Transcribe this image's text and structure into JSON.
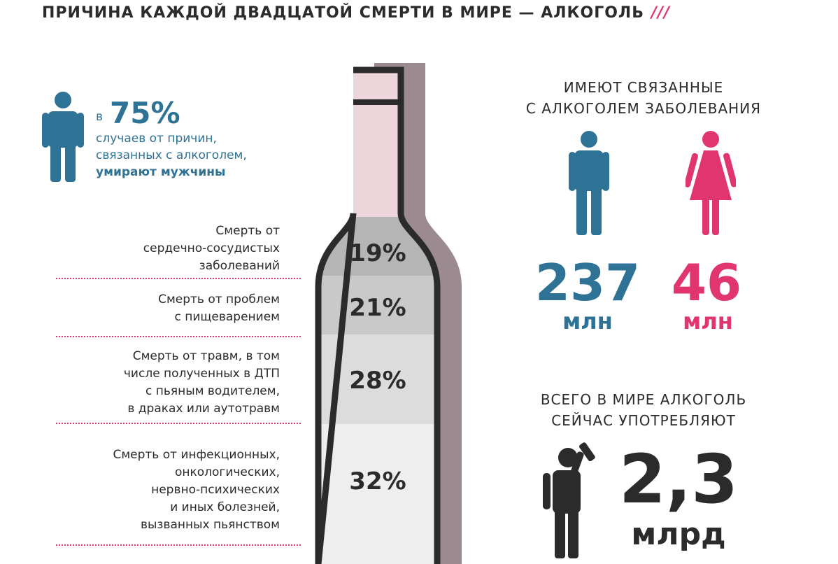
{
  "title": "ПРИЧИНА КАЖДОЙ ДВАДЦАТОЙ СМЕРТИ В МИРЕ — АЛКОГОЛЬ",
  "title_decor": "///",
  "colors": {
    "blue": "#2e7296",
    "pink": "#e0356f",
    "dark": "#2b2b2b",
    "bottle_neck": "#ecd6dc",
    "bottle_shadow": "#9b8a8f"
  },
  "men_stat": {
    "prefix": "в",
    "value": "75%",
    "line1": "случаев от причин,",
    "line2": "связанных с алкоголем,",
    "line3": "умирают мужчины"
  },
  "causes": [
    {
      "lines": [
        "Смерть от",
        "сердечно-сосудистых",
        "заболеваний"
      ],
      "pct": "19%"
    },
    {
      "lines": [
        "Смерть от проблем",
        "с пищеварением"
      ],
      "pct": "21%"
    },
    {
      "lines": [
        "Смерть от травм, в том",
        "числе полученных в ДТП",
        "с пьяным водителем,",
        "в драках или аутотравм"
      ],
      "pct": "28%"
    },
    {
      "lines": [
        "Смерть от инфекционных,",
        "онкологических,",
        "нервно-психических",
        "и иных болезней,",
        "вызванных пьянством"
      ],
      "pct": "32%"
    }
  ],
  "chart_data": {
    "type": "bar",
    "categories": [
      "Смерть от сердечно-сосудистых заболеваний",
      "Смерть от проблем с пищеварением",
      "Смерть от травм, в том числе полученных в ДТП с пьяным водителем, в драках или аутотравм",
      "Смерть от инфекционных, онкологических, нервно-психических и иных болезней, вызванных пьянством"
    ],
    "values": [
      19,
      21,
      28,
      32
    ]
  },
  "diseases": {
    "caption_line1": "ИМЕЮТ СВЯЗАННЫЕ",
    "caption_line2": "С АЛКОГОЛЕМ ЗАБОЛЕВАНИЯ",
    "men_value": "237",
    "men_unit": "млн",
    "women_value": "46",
    "women_unit": "млн"
  },
  "drinkers": {
    "caption_line1": "ВСЕГО В МИРЕ АЛКОГОЛЬ",
    "caption_line2": "СЕЙЧАС УПОТРЕБЛЯЮТ",
    "value": "2,3",
    "unit": "млрд"
  },
  "icons": [
    "man-icon",
    "woman-icon",
    "drinking-man-icon",
    "bottle-icon"
  ]
}
